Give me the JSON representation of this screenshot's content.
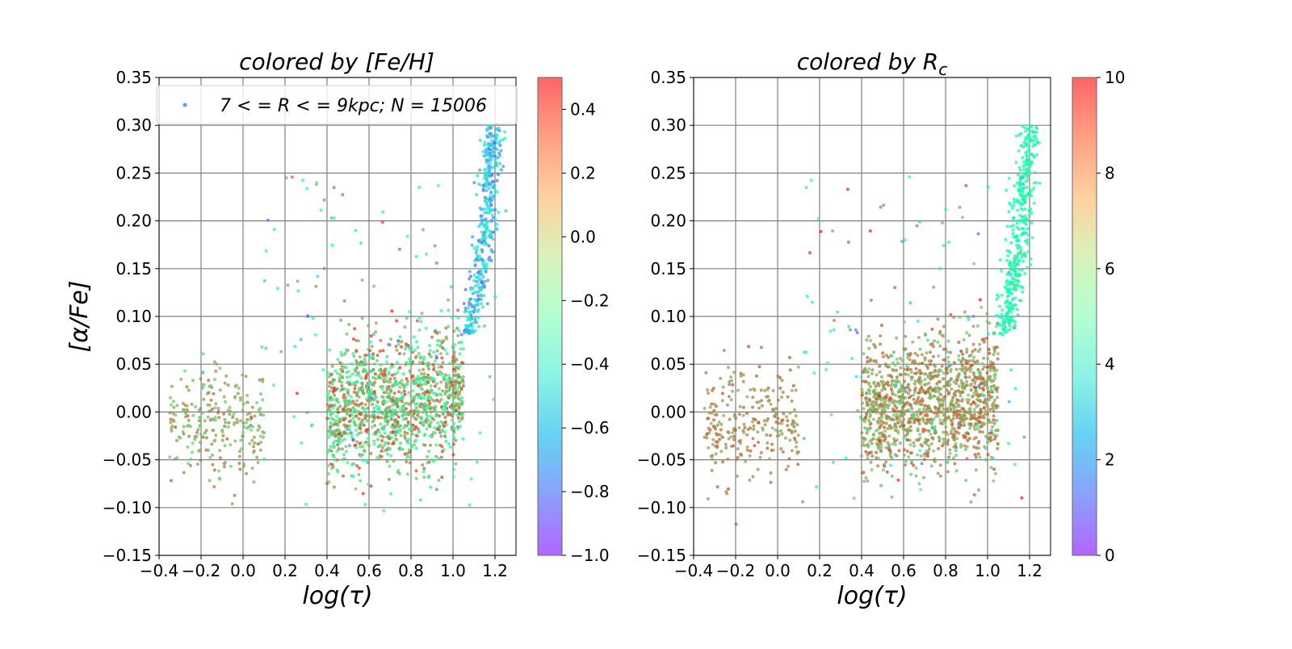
{
  "chart_data": [
    {
      "type": "scatter",
      "title": "colored by [Fe/H]",
      "xlabel": "log(τ)",
      "ylabel": "[α/Fe]",
      "xlim": [
        -0.4,
        1.3
      ],
      "ylim": [
        -0.15,
        0.35
      ],
      "xticks": [
        "−0.4",
        "−0.2",
        "0.0",
        "0.2",
        "0.4",
        "0.6",
        "0.8",
        "1.0",
        "1.2"
      ],
      "yticks": [
        "−0.15",
        "−0.10",
        "−0.05",
        "0.00",
        "0.05",
        "0.10",
        "0.15",
        "0.20",
        "0.25",
        "0.30",
        "0.35"
      ],
      "grid": true,
      "legend": {
        "label": "7 < = R < = 9kpc;  N = 15006",
        "position": "top-right"
      },
      "colorbar": {
        "colormap": "rainbow",
        "range": [
          -1.0,
          0.5
        ],
        "ticks": [
          "0.4",
          "0.2",
          "0.0",
          "−0.2",
          "−0.4",
          "−0.6",
          "−0.8",
          "−1.0"
        ]
      },
      "structure": [
        {
          "region": "thin-disc clump",
          "log_tau": [
            0.4,
            1.05
          ],
          "alpha_fe": [
            -0.06,
            0.06
          ],
          "color_value": [
            -0.2,
            0.4
          ]
        },
        {
          "region": "young stars",
          "log_tau": [
            -0.35,
            0.1
          ],
          "alpha_fe": [
            -0.06,
            0.04
          ],
          "color_value": [
            0.0,
            0.3
          ]
        },
        {
          "region": "high-alpha sequence",
          "log_tau": [
            1.05,
            1.25
          ],
          "alpha_fe": [
            0.08,
            0.3
          ],
          "color_value": [
            -0.8,
            -0.3
          ]
        }
      ]
    },
    {
      "type": "scatter",
      "title": "colored by R_c",
      "title_main": "colored by R",
      "title_sub": "c",
      "xlabel": "log(τ)",
      "xlim": [
        -0.4,
        1.3
      ],
      "ylim": [
        -0.15,
        0.35
      ],
      "xticks": [
        "−0.4",
        "−0.2",
        "0.0",
        "0.2",
        "0.4",
        "0.6",
        "0.8",
        "1.0",
        "1.2"
      ],
      "yticks": [
        "−0.15",
        "−0.10",
        "−0.05",
        "0.00",
        "0.05",
        "0.10",
        "0.15",
        "0.20",
        "0.25",
        "0.30",
        "0.35"
      ],
      "grid": true,
      "colorbar": {
        "colormap": "rainbow",
        "range": [
          0,
          10
        ],
        "ticks": [
          "10",
          "8",
          "6",
          "4",
          "2",
          "0"
        ]
      },
      "structure": [
        {
          "region": "thin-disc clump",
          "log_tau": [
            0.4,
            1.05
          ],
          "alpha_fe": [
            -0.06,
            0.06
          ],
          "color_value": [
            7,
            9
          ]
        },
        {
          "region": "young stars",
          "log_tau": [
            -0.35,
            0.1
          ],
          "alpha_fe": [
            -0.06,
            0.04
          ],
          "color_value": [
            7.5,
            9
          ]
        },
        {
          "region": "high-alpha sequence",
          "log_tau": [
            1.05,
            1.25
          ],
          "alpha_fe": [
            0.08,
            0.3
          ],
          "color_value": [
            4,
            6.5
          ]
        }
      ]
    }
  ]
}
